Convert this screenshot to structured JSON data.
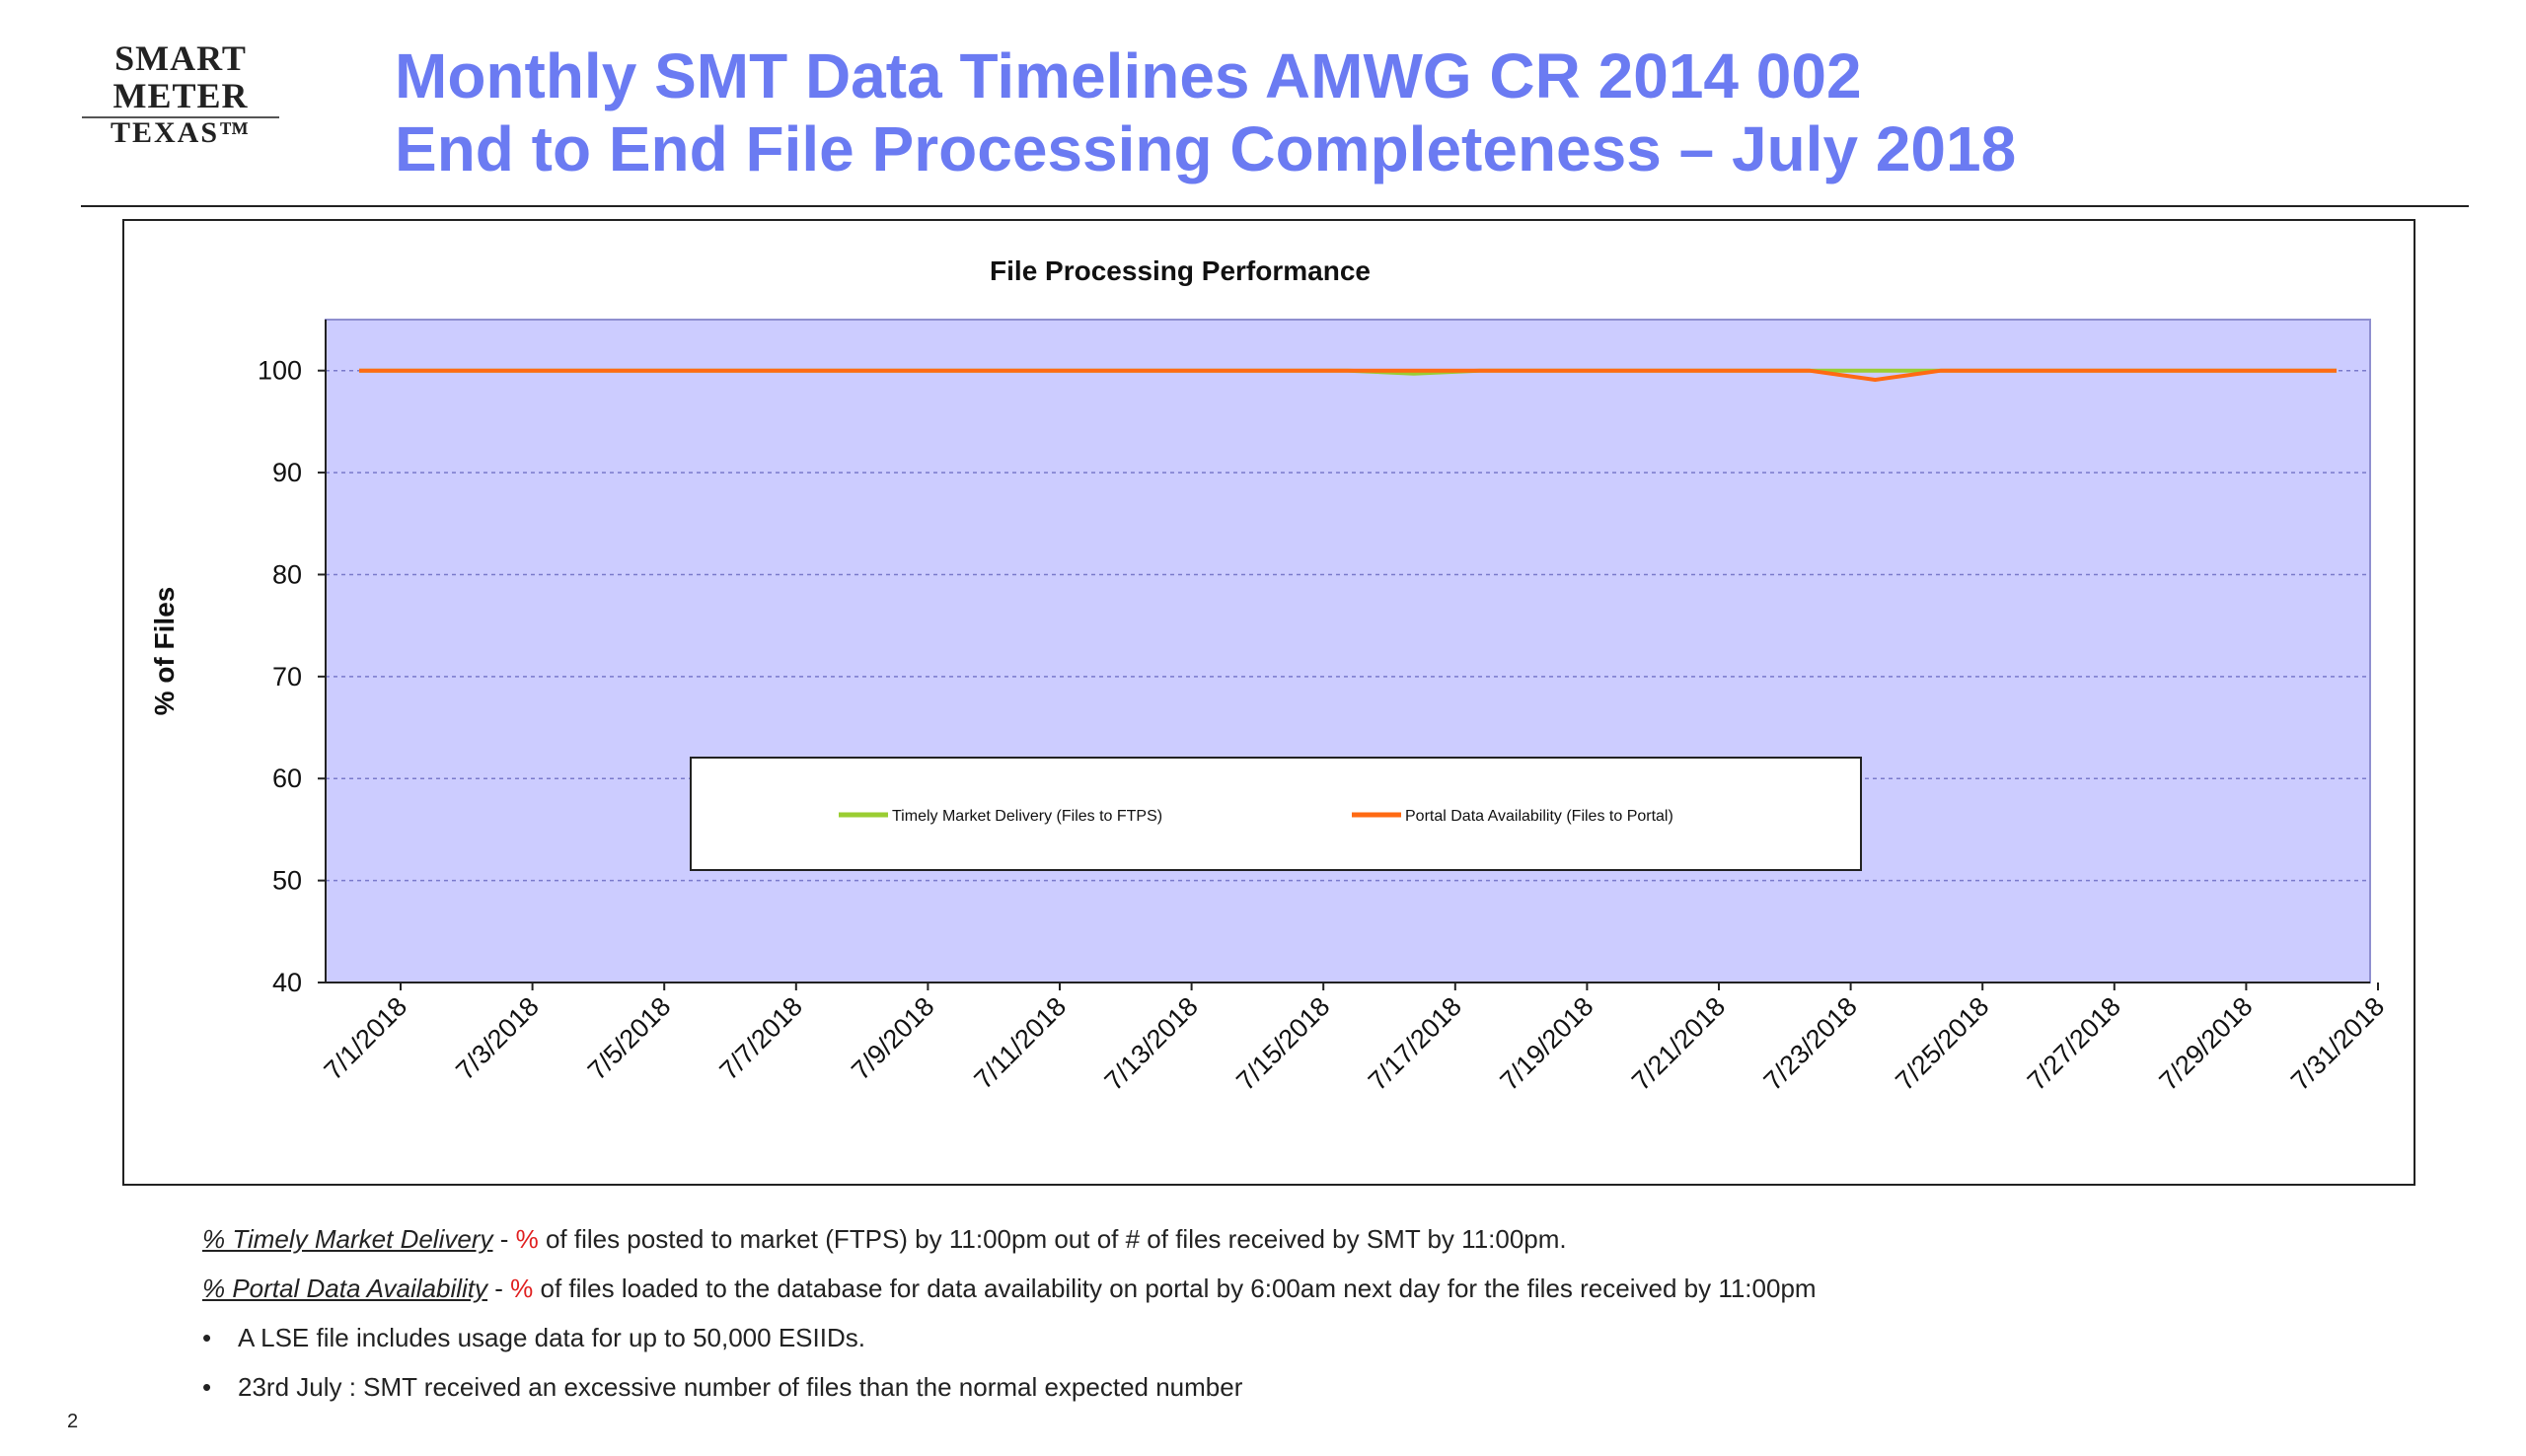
{
  "logo": {
    "line1": "SMART METER",
    "line2": "TEXAS™"
  },
  "title": {
    "line1": "Monthly SMT Data Timelines AMWG CR 2014 002",
    "line2": "End to End File Processing Completeness – July 2018"
  },
  "colors": {
    "title": "#6b7bf2",
    "plot_bg": "#ccccff",
    "series_ftps": "#9acd32",
    "series_portal": "#ff6a13"
  },
  "chart_data": {
    "type": "line",
    "title": "File Processing Performance",
    "xlabel": "",
    "ylabel": "% of Files",
    "ylim": [
      40,
      105
    ],
    "yticks": [
      40,
      50,
      60,
      70,
      80,
      90,
      100
    ],
    "grid": true,
    "legend_position": "center",
    "x": [
      "7/1/2018",
      "7/2/2018",
      "7/3/2018",
      "7/4/2018",
      "7/5/2018",
      "7/6/2018",
      "7/7/2018",
      "7/8/2018",
      "7/9/2018",
      "7/10/2018",
      "7/11/2018",
      "7/12/2018",
      "7/13/2018",
      "7/14/2018",
      "7/15/2018",
      "7/16/2018",
      "7/17/2018",
      "7/18/2018",
      "7/19/2018",
      "7/20/2018",
      "7/21/2018",
      "7/22/2018",
      "7/23/2018",
      "7/24/2018",
      "7/25/2018",
      "7/26/2018",
      "7/27/2018",
      "7/28/2018",
      "7/29/2018",
      "7/30/2018",
      "7/31/2018"
    ],
    "xtick_labels": [
      "7/1/2018",
      "7/3/2018",
      "7/5/2018",
      "7/7/2018",
      "7/9/2018",
      "7/11/2018",
      "7/13/2018",
      "7/15/2018",
      "7/17/2018",
      "7/19/2018",
      "7/21/2018",
      "7/23/2018",
      "7/25/2018",
      "7/27/2018",
      "7/29/2018",
      "7/31/2018"
    ],
    "series": [
      {
        "name": "Timely Market Delivery (Files to FTPS)",
        "color": "#9acd32",
        "values": [
          100,
          100,
          100,
          100,
          100,
          100,
          100,
          100,
          100,
          100,
          100,
          100,
          100,
          100,
          100,
          100,
          99.7,
          100,
          100,
          100,
          100,
          100,
          100,
          100,
          100,
          100,
          100,
          100,
          100,
          100,
          100
        ]
      },
      {
        "name": "Portal Data Availability (Files to Portal)",
        "color": "#ff6a13",
        "values": [
          100,
          100,
          100,
          100,
          100,
          100,
          100,
          100,
          100,
          100,
          100,
          100,
          100,
          100,
          100,
          100,
          100,
          100,
          100,
          100,
          100,
          100,
          100,
          99.1,
          100,
          100,
          100,
          100,
          100,
          100,
          100
        ]
      }
    ]
  },
  "notes": {
    "n1": {
      "term": "% Timely Market Delivery",
      "sep": " - ",
      "pct": "%",
      "text": " of files posted to market (FTPS) by 11:00pm out of # of files received by SMT by 11:00pm."
    },
    "n2": {
      "term": "% Portal Data Availability",
      "sep": " - ",
      "pct": "%",
      "text": " of files loaded to the database for data availability on portal by 6:00am next day for the files received by 11:00pm"
    },
    "bullets": [
      "A LSE file includes usage data for up to 50,000 ESIIDs.",
      "23rd July : SMT received an excessive number of files than the normal expected number"
    ]
  },
  "page_number": "2"
}
